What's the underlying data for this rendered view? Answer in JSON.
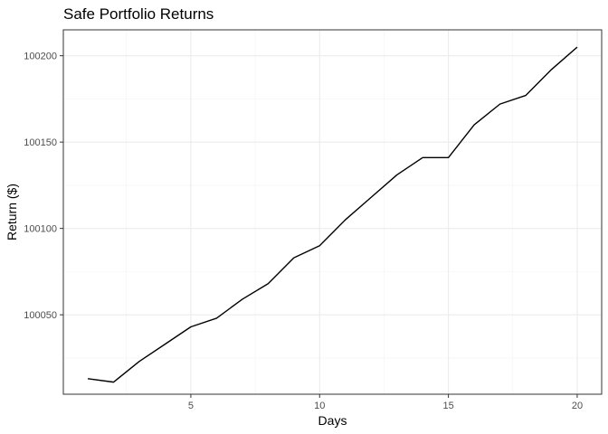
{
  "chart_data": {
    "type": "line",
    "title": "Safe Portfolio Returns",
    "xlabel": "Days",
    "ylabel": "Return ($)",
    "x": [
      1,
      2,
      3,
      4,
      5,
      6,
      7,
      8,
      9,
      10,
      11,
      12,
      13,
      14,
      15,
      16,
      17,
      18,
      19,
      20
    ],
    "y": [
      100013,
      100011,
      100023,
      100033,
      100043,
      100048,
      100059,
      100068,
      100083,
      100090,
      100105,
      100118,
      100131,
      100141,
      100141,
      100160,
      100172,
      100177,
      100192,
      100205
    ],
    "xlim": [
      0.05,
      20.95
    ],
    "ylim": [
      100004,
      100215
    ],
    "x_ticks": [
      5,
      10,
      15,
      20
    ],
    "y_ticks": [
      100050,
      100100,
      100150,
      100200
    ],
    "x_minor_ticks": [
      2.5,
      7.5,
      12.5,
      17.5
    ],
    "y_minor_ticks": [
      100025,
      100075,
      100125,
      100175
    ],
    "grid": true,
    "colors": {
      "line": "#000000",
      "grid": "#ebebeb",
      "border": "#333333"
    }
  }
}
